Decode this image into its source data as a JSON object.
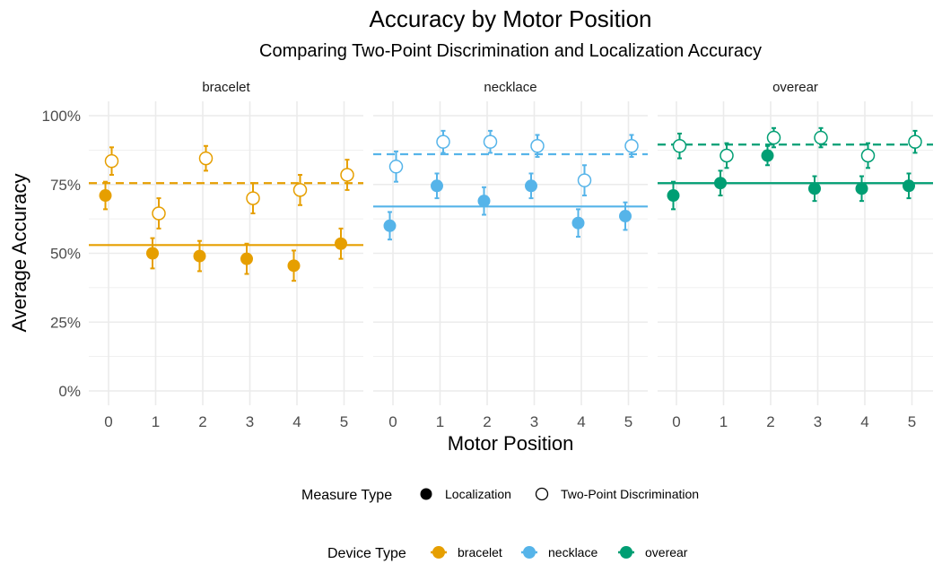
{
  "chart_data": {
    "type": "scatter",
    "title": "Accuracy by Motor Position",
    "subtitle": "Comparing Two-Point Discrimination and Localization Accuracy",
    "xlabel": "Motor Position",
    "ylabel": "Average Accuracy",
    "x_ticks": [
      "0",
      "1",
      "2",
      "3",
      "4",
      "5"
    ],
    "y_ticks": [
      "0%",
      "25%",
      "50%",
      "75%",
      "100%"
    ],
    "ylim": [
      0,
      1.05
    ],
    "grid": true,
    "legend_position": "bottom",
    "measure_legend": {
      "title": "Measure Type",
      "items": [
        {
          "label": "Localization",
          "marker": "filled-circle"
        },
        {
          "label": "Two-Point Discrimination",
          "marker": "open-circle"
        }
      ]
    },
    "device_legend": {
      "title": "Device Type",
      "items": [
        {
          "label": "bracelet",
          "color": "#E69F00"
        },
        {
          "label": "necklace",
          "color": "#56B4E9"
        },
        {
          "label": "overear",
          "color": "#009E73"
        }
      ]
    },
    "panels": [
      {
        "name": "bracelet",
        "color": "#E69F00",
        "localization": {
          "x": [
            0,
            1,
            2,
            3,
            4,
            5
          ],
          "mean": [
            0.71,
            0.5,
            0.49,
            0.48,
            0.455,
            0.535
          ],
          "err": [
            0.05,
            0.055,
            0.055,
            0.055,
            0.055,
            0.055
          ],
          "overall": 0.53
        },
        "two_point": {
          "x": [
            0,
            1,
            2,
            3,
            4,
            5
          ],
          "mean": [
            0.835,
            0.645,
            0.845,
            0.7,
            0.73,
            0.785
          ],
          "err": [
            0.05,
            0.055,
            0.045,
            0.055,
            0.055,
            0.055
          ],
          "overall": 0.755
        }
      },
      {
        "name": "necklace",
        "color": "#56B4E9",
        "localization": {
          "x": [
            0,
            1,
            2,
            3,
            4,
            5
          ],
          "mean": [
            0.6,
            0.745,
            0.69,
            0.745,
            0.61,
            0.635
          ],
          "err": [
            0.05,
            0.045,
            0.05,
            0.045,
            0.05,
            0.05
          ],
          "overall": 0.67
        },
        "two_point": {
          "x": [
            0,
            1,
            2,
            3,
            4,
            5
          ],
          "mean": [
            0.815,
            0.905,
            0.905,
            0.89,
            0.765,
            0.89
          ],
          "err": [
            0.055,
            0.04,
            0.04,
            0.04,
            0.055,
            0.04
          ],
          "overall": 0.86
        }
      },
      {
        "name": "overear",
        "color": "#009E73",
        "localization": {
          "x": [
            0,
            1,
            2,
            3,
            4,
            5
          ],
          "mean": [
            0.71,
            0.755,
            0.855,
            0.735,
            0.735,
            0.745
          ],
          "err": [
            0.05,
            0.045,
            0.035,
            0.045,
            0.045,
            0.045
          ],
          "overall": 0.755
        },
        "two_point": {
          "x": [
            0,
            1,
            2,
            3,
            4,
            5
          ],
          "mean": [
            0.89,
            0.855,
            0.92,
            0.92,
            0.855,
            0.905
          ],
          "err": [
            0.045,
            0.045,
            0.035,
            0.035,
            0.045,
            0.04
          ],
          "overall": 0.895
        }
      }
    ]
  }
}
